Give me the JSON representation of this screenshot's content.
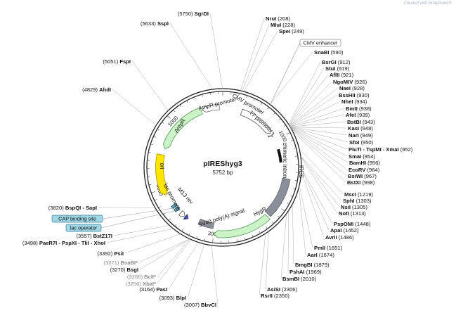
{
  "credit": "Created with SnapGene®",
  "plasmid": {
    "name": "pIRES hyg3",
    "title": "pIREShyg3",
    "size_bp": 5752,
    "size_label": "5752 bp"
  },
  "ticks": [
    "1000",
    "2000",
    "3000",
    "4000",
    "5000"
  ],
  "features": [
    {
      "id": "cmv-enhancer",
      "label": "CMV enhancer",
      "boxed": true
    },
    {
      "id": "cmv-promoter",
      "label": "CMV promoter"
    },
    {
      "id": "t7-promoter",
      "label": "T7 promoter"
    },
    {
      "id": "chimeric-intron",
      "label": "chimeric intron"
    },
    {
      "id": "ires",
      "label": "IRES"
    },
    {
      "id": "hygr",
      "label": "HygR"
    },
    {
      "id": "sv40-polya",
      "label": "SV40 poly(A) signal"
    },
    {
      "id": "m13-rev",
      "label": "M13 rev"
    },
    {
      "id": "lac-promoter",
      "label": "lac promoter"
    },
    {
      "id": "ori",
      "label": "ori"
    },
    {
      "id": "ampr",
      "label": "AmpR"
    },
    {
      "id": "ampr-promoter",
      "label": "AmpR promoter"
    },
    {
      "id": "cap-binding-site",
      "label": "CAP binding site",
      "boxed": true
    },
    {
      "id": "lac-operator",
      "label": "lac operator",
      "boxed": true
    }
  ],
  "sites": [
    {
      "name": "NruI",
      "pos": "(208)"
    },
    {
      "name": "MluI",
      "pos": "(228)"
    },
    {
      "name": "SpeI",
      "pos": "(249)"
    },
    {
      "name": "SnaBI",
      "pos": "(590)"
    },
    {
      "name": "BsrGI",
      "pos": "(912)"
    },
    {
      "name": "StuI",
      "pos": "(919)"
    },
    {
      "name": "AflII",
      "pos": "(921)"
    },
    {
      "name": "NgoMIV",
      "pos": "(926)"
    },
    {
      "name": "NaeI",
      "pos": "(928)"
    },
    {
      "name": "BssHII",
      "pos": "(930)"
    },
    {
      "name": "NheI",
      "pos": "(934)"
    },
    {
      "name": "BmtI",
      "pos": "(938)"
    },
    {
      "name": "AfeI",
      "pos": "(939)"
    },
    {
      "name": "BstBI",
      "pos": "(943)"
    },
    {
      "name": "KasI",
      "pos": "(948)"
    },
    {
      "name": "NarI",
      "pos": "(949)"
    },
    {
      "name": "SfoI",
      "pos": "(950)"
    },
    {
      "name": "PluTI - TspMI - XmaI",
      "pos": "(952)"
    },
    {
      "name": "SmaI",
      "pos": "(954)"
    },
    {
      "name": "BamHI",
      "pos": "(956)"
    },
    {
      "name": "EcoRV",
      "pos": "(964)"
    },
    {
      "name": "BsiWI",
      "pos": "(967)"
    },
    {
      "name": "BstXI",
      "pos": "(998)"
    },
    {
      "name": "MscI",
      "pos": "(1219)"
    },
    {
      "name": "SphI",
      "pos": "(1303)"
    },
    {
      "name": "NsiI",
      "pos": "(1305)"
    },
    {
      "name": "NotI",
      "pos": "(1313)"
    },
    {
      "name": "PspOMI",
      "pos": "(1448)"
    },
    {
      "name": "ApaI",
      "pos": "(1452)"
    },
    {
      "name": "AvrII",
      "pos": "(1486)"
    },
    {
      "name": "PmlI",
      "pos": "(1651)"
    },
    {
      "name": "AarI",
      "pos": "(1674)"
    },
    {
      "name": "BmgBI",
      "pos": "(1879)"
    },
    {
      "name": "PshAI",
      "pos": "(1969)"
    },
    {
      "name": "BsmBI",
      "pos": "(2010)"
    },
    {
      "name": "AsiSI",
      "pos": "(2306)"
    },
    {
      "name": "RsrII",
      "pos": "(2350)"
    },
    {
      "name": "BbvCI",
      "pos": "(3007)"
    },
    {
      "name": "BlpI",
      "pos": "(3093)"
    },
    {
      "name": "PasI",
      "pos": "(3164)"
    },
    {
      "name": "XbaI*",
      "pos": "(3256)",
      "gray": true
    },
    {
      "name": "BclI*",
      "pos": "(3266)",
      "gray": true
    },
    {
      "name": "BsgI",
      "pos": "(3270)"
    },
    {
      "name": "BsaBI*",
      "pos": "(3271)",
      "gray": true
    },
    {
      "name": "PsiI",
      "pos": "(3392)"
    },
    {
      "name": "PaeR7I - PspXI - TliI - XhoI",
      "pos": "(3498)"
    },
    {
      "name": "BstZ17I",
      "pos": "(3557)"
    },
    {
      "name": "BspQI - SapI",
      "pos": "(3820)"
    },
    {
      "name": "AhdI",
      "pos": "(4829)"
    },
    {
      "name": "FspI",
      "pos": "(5051)"
    },
    {
      "name": "SspI",
      "pos": "(5633)"
    },
    {
      "name": "SgrDI",
      "pos": "(5750)"
    }
  ]
}
